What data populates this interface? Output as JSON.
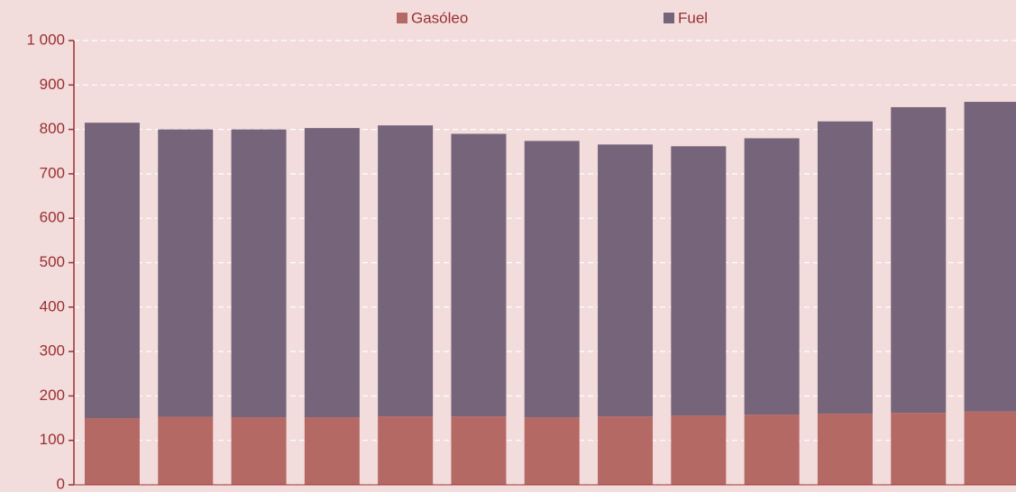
{
  "chart_data": {
    "type": "bar",
    "stacked": true,
    "categories": [
      null,
      null,
      null,
      null,
      null,
      null,
      null,
      null,
      null,
      null,
      null,
      null,
      null
    ],
    "series": [
      {
        "name": "Gasóleo",
        "color": "#b56965",
        "values": [
          150,
          153,
          152,
          152,
          154,
          154,
          152,
          154,
          156,
          158,
          160,
          162,
          165
        ]
      },
      {
        "name": "Fuel",
        "color": "#75647a",
        "values": [
          665,
          647,
          648,
          651,
          655,
          636,
          622,
          612,
          606,
          622,
          658,
          688,
          697
        ]
      }
    ],
    "ylim": [
      0,
      1000
    ],
    "yticks": [
      0,
      100,
      200,
      300,
      400,
      500,
      600,
      700,
      800,
      900,
      {
        "value": 1000,
        "label": "1 000"
      }
    ],
    "grid": true,
    "legend": "top"
  }
}
